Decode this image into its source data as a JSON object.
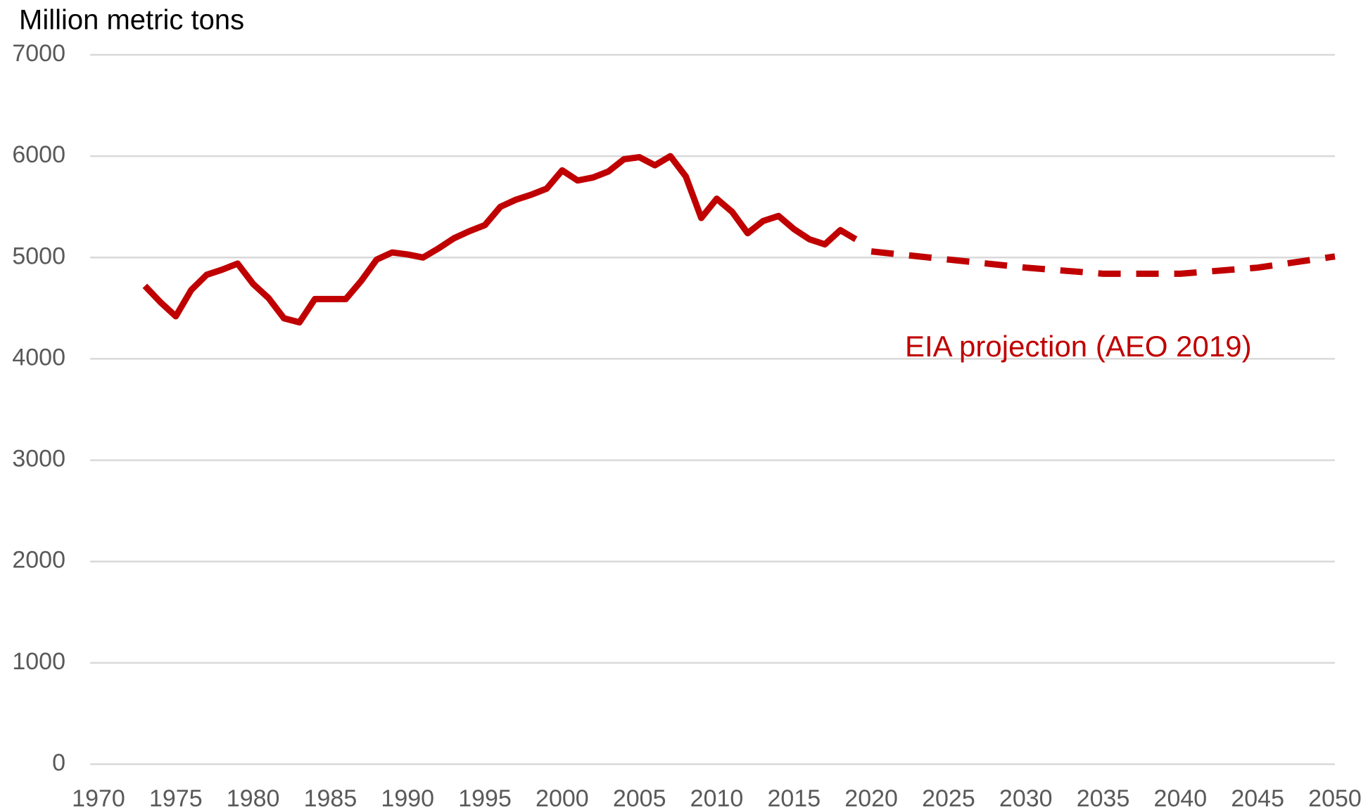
{
  "chart_data": {
    "type": "line",
    "title": "Million metric tons",
    "annotation": "EIA projection (AEO 2019)",
    "xlim": [
      1970,
      2050
    ],
    "xticks": [
      1970,
      1975,
      1980,
      1985,
      1990,
      1995,
      2000,
      2005,
      2010,
      2015,
      2020,
      2025,
      2030,
      2035,
      2040,
      2045,
      2050
    ],
    "ylim": [
      0,
      7000
    ],
    "yticks": [
      0,
      1000,
      2000,
      3000,
      4000,
      5000,
      6000,
      7000
    ],
    "grid": true,
    "series": [
      {
        "color": "#c00000",
        "style": "solid",
        "x": [
          1973,
          1974,
          1975,
          1976,
          1977,
          1978,
          1979,
          1980,
          1981,
          1982,
          1983,
          1984,
          1985,
          1986,
          1987,
          1988,
          1989,
          1990,
          1991,
          1992,
          1993,
          1994,
          1995,
          1996,
          1997,
          1998,
          1999,
          2000,
          2001,
          2002,
          2003,
          2004,
          2005,
          2006,
          2007,
          2008,
          2009,
          2010,
          2011,
          2012,
          2013,
          2014,
          2015,
          2016,
          2017,
          2018,
          2019
        ],
        "values": [
          4720,
          4560,
          4420,
          4680,
          4830,
          4880,
          4940,
          4740,
          4600,
          4400,
          4360,
          4590,
          4590,
          4590,
          4770,
          4980,
          5050,
          5030,
          5000,
          5090,
          5190,
          5260,
          5320,
          5500,
          5570,
          5620,
          5680,
          5860,
          5760,
          5790,
          5850,
          5970,
          5990,
          5910,
          6000,
          5800,
          5390,
          5580,
          5450,
          5240,
          5360,
          5410,
          5280,
          5180,
          5130,
          5270,
          5180
        ]
      },
      {
        "color": "#c00000",
        "style": "dashed",
        "x": [
          2020,
          2025,
          2030,
          2035,
          2040,
          2045,
          2050
        ],
        "values": [
          5060,
          4980,
          4900,
          4840,
          4840,
          4900,
          5010
        ]
      }
    ]
  }
}
